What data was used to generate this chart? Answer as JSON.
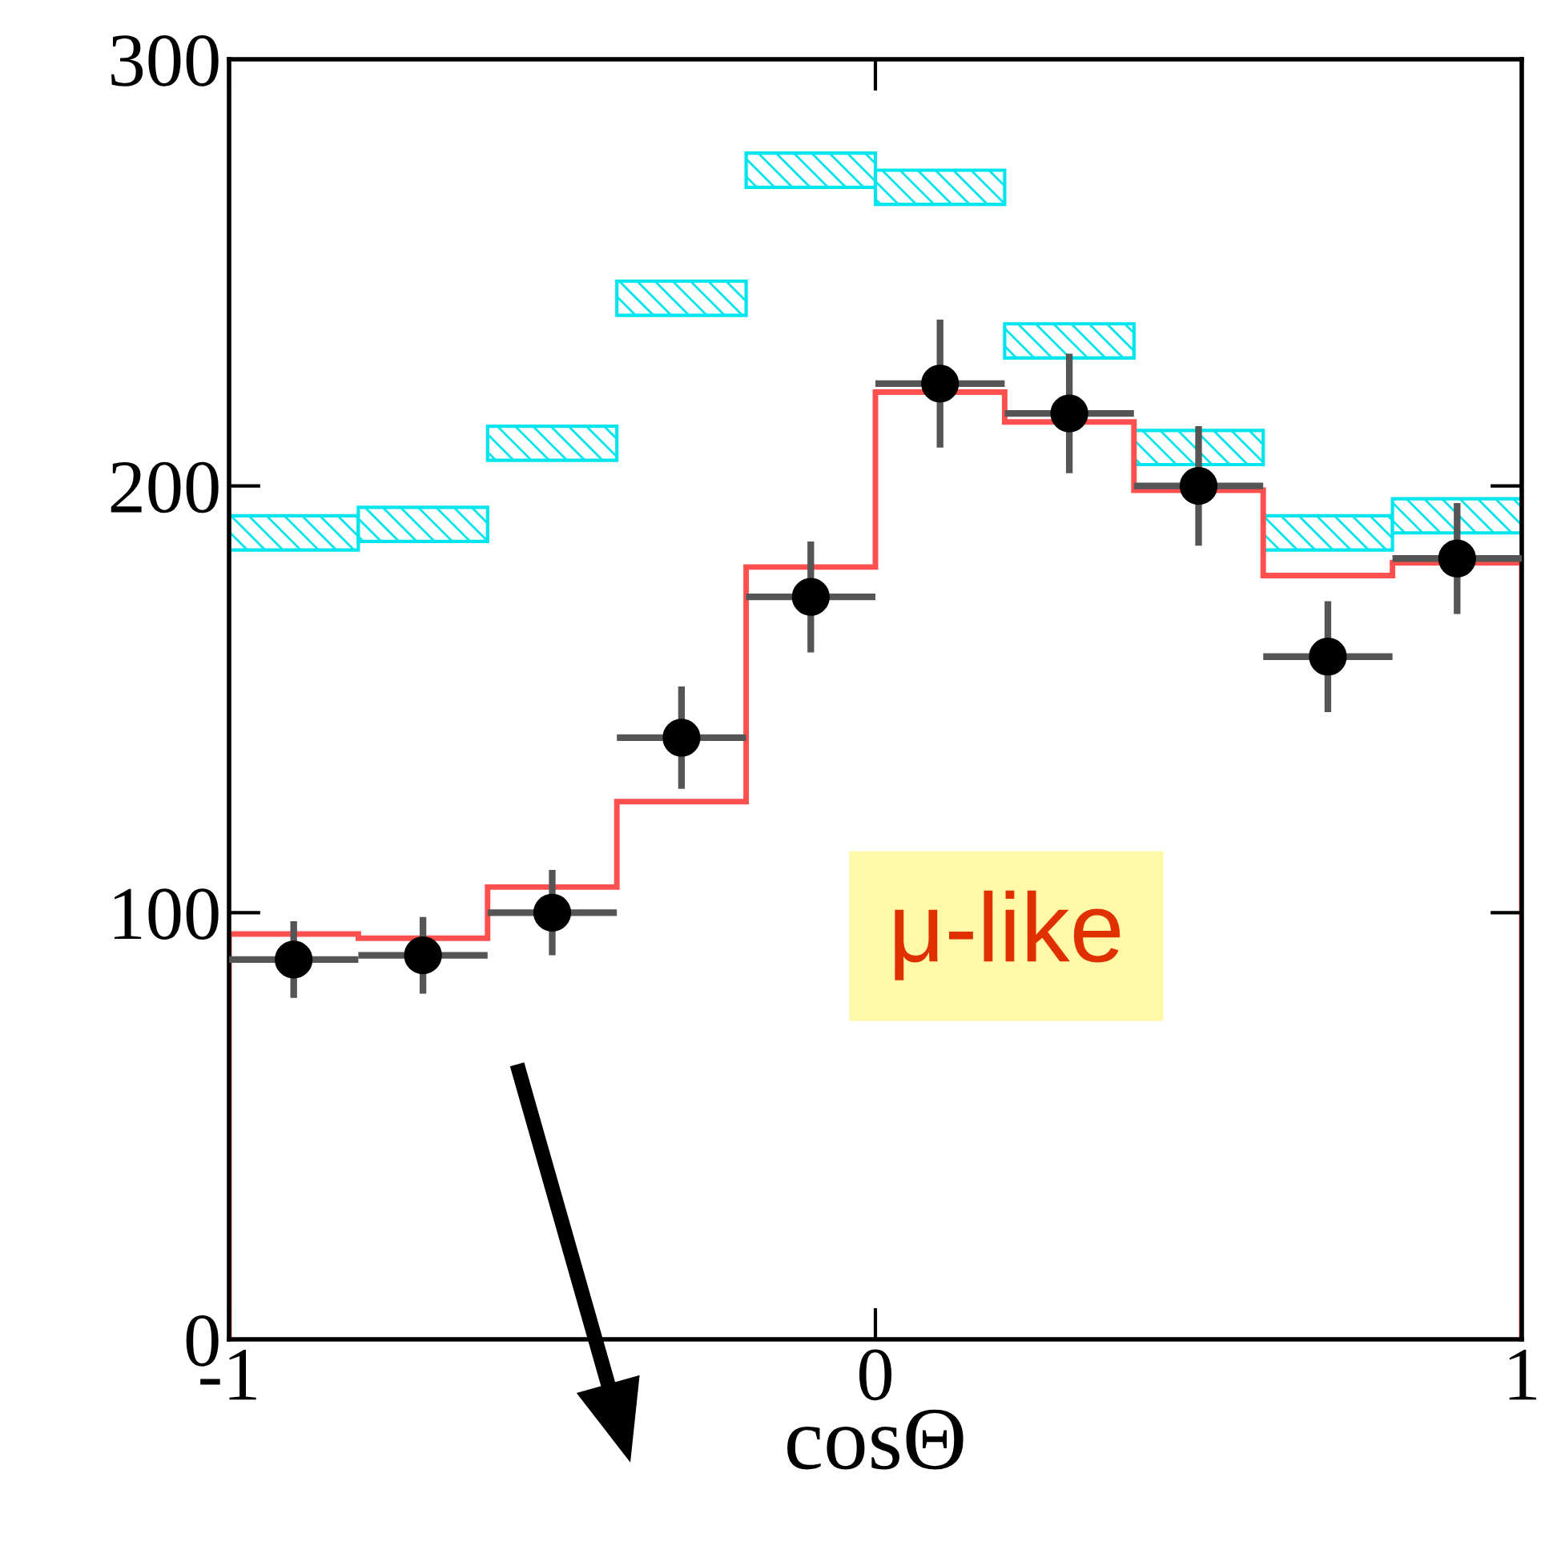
{
  "chart_data": {
    "type": "bar",
    "xlabel": "cosΘ",
    "annotations": [
      "μ-like"
    ],
    "bins": [
      -1,
      -0.8,
      -0.6,
      -0.4,
      -0.2,
      0,
      0.2,
      0.4,
      0.6,
      0.8,
      1
    ],
    "series": [
      {
        "color": "#00e5ee",
        "x": [
          -0.9,
          -0.7,
          -0.5,
          -0.3,
          -0.1,
          0.1,
          0.3,
          0.5,
          0.7,
          0.9
        ],
        "base": [
          185,
          187,
          206,
          240,
          270,
          266,
          230,
          205,
          185,
          189
        ],
        "values": [
          8,
          8,
          8,
          8,
          8,
          8,
          8,
          8,
          8,
          8
        ]
      },
      {
        "type": "histogram",
        "color": "#ff5050",
        "values": [
          95,
          94,
          106,
          126,
          181,
          222,
          215,
          199,
          179,
          182
        ]
      },
      {
        "type": "scatter",
        "color": "#000000",
        "x": [
          -0.9,
          -0.7,
          -0.5,
          -0.3,
          -0.1,
          0.1,
          0.3,
          0.5,
          0.7,
          0.9
        ],
        "values": [
          89,
          90,
          100,
          141,
          174,
          224,
          217,
          200,
          160,
          183
        ],
        "errors": [
          9,
          9,
          10,
          12,
          13,
          15,
          14,
          14,
          13,
          13
        ],
        "xerrors": [
          0.1,
          0.1,
          0.1,
          0.1,
          0.1,
          0.1,
          0.1,
          0.1,
          0.1,
          0.1
        ]
      }
    ],
    "xlim": [
      -1,
      1
    ],
    "ylim": [
      0,
      300
    ],
    "xticks": [
      -1,
      0,
      1
    ],
    "yticks": [
      0,
      100,
      200,
      300
    ],
    "grid": false,
    "legend": false,
    "marker": "circle"
  }
}
